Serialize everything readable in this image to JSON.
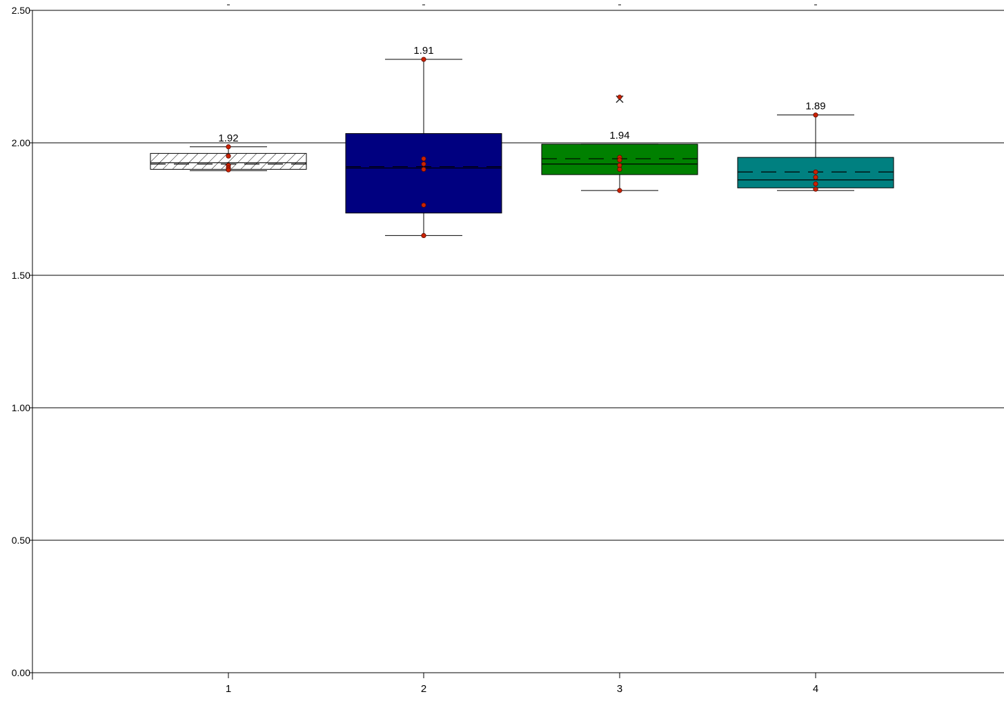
{
  "chart_data": {
    "type": "box",
    "title": "",
    "xlabel": "",
    "ylabel": "",
    "ylim": [
      0,
      2.5
    ],
    "yticks": [
      "0.00",
      "0.50",
      "1.00",
      "1.50",
      "2.00",
      "2.50"
    ],
    "categories": [
      "1",
      "2",
      "3",
      "4"
    ],
    "grid": true,
    "boxes": [
      {
        "category": "1",
        "fill": "hatch",
        "color": "#ffffff",
        "whisker_low": 1.895,
        "q1": 1.9,
        "median": 1.925,
        "mean": 1.92,
        "q3": 1.96,
        "whisker_high": 1.985,
        "mean_label": "1.92",
        "points": [
          1.985,
          1.95,
          1.915,
          1.905,
          1.898
        ],
        "outliers": []
      },
      {
        "category": "2",
        "fill": "solid",
        "color": "#000080",
        "whisker_low": 1.65,
        "q1": 1.735,
        "median": 1.905,
        "mean": 1.91,
        "q3": 2.035,
        "whisker_high": 2.315,
        "mean_label": "1.91",
        "points": [
          2.315,
          1.94,
          1.92,
          1.9,
          1.765,
          1.65
        ],
        "outliers": []
      },
      {
        "category": "3",
        "fill": "solid",
        "color": "#008000",
        "whisker_low": 1.82,
        "q1": 1.88,
        "median": 1.92,
        "mean": 1.94,
        "q3": 1.995,
        "whisker_high": 1.995,
        "mean_label": "1.94",
        "points": [
          1.945,
          1.935,
          1.915,
          1.9,
          1.82
        ],
        "outliers": [
          2.165
        ]
      },
      {
        "category": "4",
        "fill": "solid",
        "color": "#008080",
        "whisker_low": 1.82,
        "q1": 1.83,
        "median": 1.86,
        "mean": 1.89,
        "q3": 1.945,
        "whisker_high": 2.105,
        "mean_label": "1.89",
        "points": [
          2.105,
          1.89,
          1.87,
          1.845,
          1.825
        ],
        "outliers": []
      }
    ]
  },
  "colors": {
    "axis": "#000000",
    "grid": "#000000",
    "point": "#cc2200",
    "text": "#000000"
  }
}
